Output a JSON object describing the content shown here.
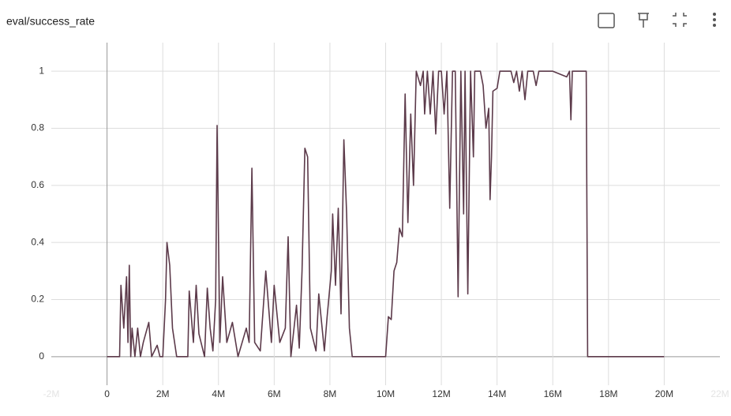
{
  "chart_data": {
    "type": "line",
    "title": "eval/success_rate",
    "x": [
      0,
      450000,
      500000,
      600000,
      700000,
      750000,
      800000,
      850000,
      900000,
      1000000,
      1100000,
      1200000,
      1300000,
      1500000,
      1600000,
      1800000,
      1900000,
      2000000,
      2100000,
      2150000,
      2250000,
      2350000,
      2500000,
      2900000,
      2950000,
      3100000,
      3200000,
      3300000,
      3500000,
      3600000,
      3700000,
      3800000,
      3900000,
      3950000,
      4050000,
      4150000,
      4300000,
      4500000,
      4700000,
      5000000,
      5100000,
      5200000,
      5300000,
      5500000,
      5700000,
      5900000,
      6000000,
      6200000,
      6400000,
      6500000,
      6600000,
      6800000,
      6900000,
      7000000,
      7100000,
      7200000,
      7300000,
      7500000,
      7600000,
      7800000,
      7900000,
      8050000,
      8100000,
      8200000,
      8300000,
      8400000,
      8500000,
      8600000,
      8700000,
      8800000,
      10000000,
      10100000,
      10200000,
      10300000,
      10400000,
      10500000,
      10600000,
      10700000,
      10800000,
      10900000,
      11000000,
      11100000,
      11250000,
      11350000,
      11400000,
      11500000,
      11600000,
      11700000,
      11800000,
      11900000,
      12000000,
      12100000,
      12200000,
      12300000,
      12400000,
      12500000,
      12600000,
      12700000,
      12800000,
      12850000,
      12950000,
      13050000,
      13150000,
      13200000,
      13400000,
      13500000,
      13600000,
      13700000,
      13750000,
      13800000,
      13850000,
      14000000,
      14100000,
      14500000,
      14600000,
      14700000,
      14800000,
      14900000,
      15000000,
      15100000,
      15300000,
      15400000,
      15500000,
      16000000,
      16500000,
      16600000,
      16650000,
      16700000,
      17200000,
      17250000,
      20000000
    ],
    "series": [
      {
        "name": "eval/success_rate",
        "color": "#5c3a4a",
        "values": [
          0,
          0,
          0.25,
          0.1,
          0.28,
          0.05,
          0.32,
          0,
          0.1,
          0,
          0.1,
          0,
          0.05,
          0.12,
          0,
          0.04,
          0,
          0,
          0.2,
          0.4,
          0.32,
          0.1,
          0,
          0,
          0.23,
          0.05,
          0.25,
          0.08,
          0,
          0.24,
          0.1,
          0.02,
          0.2,
          0.81,
          0.05,
          0.28,
          0.05,
          0.12,
          0,
          0.1,
          0.05,
          0.66,
          0.05,
          0.02,
          0.3,
          0.05,
          0.25,
          0.05,
          0.1,
          0.42,
          0,
          0.18,
          0.03,
          0.3,
          0.73,
          0.7,
          0.1,
          0.02,
          0.22,
          0.02,
          0.14,
          0.3,
          0.5,
          0.25,
          0.52,
          0.15,
          0.76,
          0.5,
          0.1,
          0,
          0,
          0.14,
          0.13,
          0.3,
          0.33,
          0.45,
          0.42,
          0.92,
          0.47,
          0.85,
          0.6,
          1,
          0.95,
          1,
          0.85,
          1,
          0.85,
          1,
          0.78,
          1,
          1,
          0.85,
          1,
          0.52,
          1,
          1,
          0.21,
          1,
          0.5,
          1,
          0.22,
          1,
          0.7,
          1,
          1,
          0.95,
          0.8,
          0.87,
          0.55,
          0.7,
          0.93,
          0.94,
          1,
          1,
          0.96,
          1,
          0.93,
          1,
          0.9,
          1,
          1,
          0.95,
          1,
          1,
          0.98,
          1,
          0.83,
          1,
          1,
          0,
          0
        ]
      }
    ],
    "xlim": [
      -2000000,
      22000000
    ],
    "ylim": [
      -0.1,
      1.1
    ],
    "xticks": [
      {
        "value": -2000000,
        "label": "-2M"
      },
      0,
      {
        "value": 2000000,
        "label": "2M"
      },
      {
        "value": 4000000,
        "label": "4M"
      },
      {
        "value": 6000000,
        "label": "6M"
      },
      {
        "value": 8000000,
        "label": "8M"
      },
      {
        "value": 10000000,
        "label": "10M"
      },
      {
        "value": 12000000,
        "label": "12M"
      },
      {
        "value": 14000000,
        "label": "14M"
      },
      {
        "value": 16000000,
        "label": "16M"
      },
      {
        "value": 18000000,
        "label": "18M"
      },
      {
        "value": 20000000,
        "label": "20M"
      },
      {
        "value": 22000000,
        "label": "22M"
      }
    ],
    "yticks": [
      0,
      0.2,
      0.4,
      0.6,
      0.8,
      1
    ],
    "grid": true
  }
}
